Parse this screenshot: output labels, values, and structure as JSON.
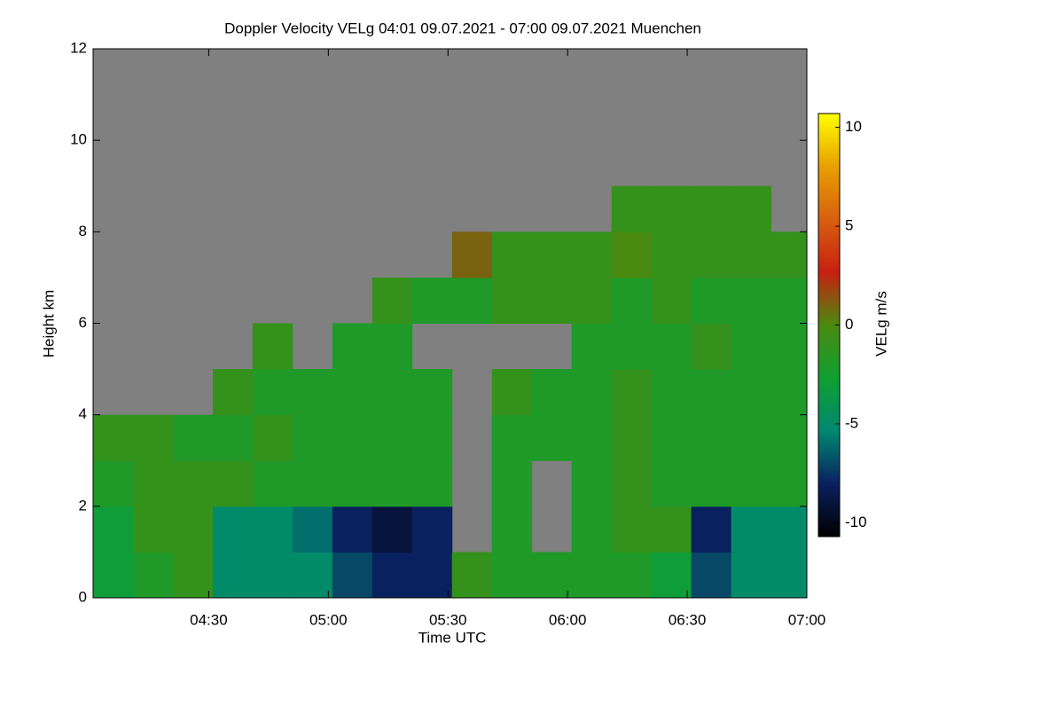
{
  "chart_data": {
    "type": "heatmap",
    "title": "Doppler Velocity VELg   04:01 09.07.2021 - 07:00 09.07.2021 Muenchen",
    "x_label": "Time UTC",
    "y_label": "Height km",
    "colorbar_label": "VELg m/s",
    "xlim": [
      "04:01",
      "07:00"
    ],
    "xticks": [
      "04:30",
      "05:00",
      "05:30",
      "06:00",
      "06:30",
      "07:00"
    ],
    "ylim": [
      0,
      12
    ],
    "yticks": [
      0,
      2,
      4,
      6,
      8,
      10,
      12
    ],
    "zlim": [
      -10.7,
      10.7
    ],
    "zticks": [
      -10,
      -5,
      0,
      5,
      10
    ],
    "colorscale": [
      "#000000",
      "#0a2060",
      "#008870",
      "#10a030",
      "#4a8a10",
      "#c82010",
      "#d86010",
      "#e8a000",
      "#ffff00"
    ],
    "nodata_color": "#808080",
    "xbins": [
      "04:01",
      "04:11",
      "04:21",
      "04:31",
      "04:41",
      "04:51",
      "05:01",
      "05:11",
      "05:21",
      "05:31",
      "05:41",
      "05:51",
      "06:01",
      "06:11",
      "06:21",
      "06:31",
      "06:41",
      "06:51",
      "07:00"
    ],
    "ybins": [
      0,
      1,
      2,
      3,
      4,
      5,
      6,
      7,
      8,
      9,
      10,
      11,
      12
    ],
    "z": [
      [
        -3,
        -2,
        -1,
        -5,
        -5,
        -5,
        -7,
        -8,
        -8,
        -1,
        -2,
        -2,
        -2,
        -2,
        -3,
        -7,
        -5,
        -5
      ],
      [
        -3,
        -1,
        -1,
        -5,
        -5,
        -6,
        -8,
        -9,
        -8,
        null,
        -2,
        null,
        -2,
        -1,
        -1,
        -8,
        -5,
        -5
      ],
      [
        -2,
        -1,
        -1,
        -1,
        -2,
        -2,
        -2,
        -2,
        -2,
        null,
        -2,
        null,
        -2,
        -1,
        -2,
        -2,
        -2,
        -2
      ],
      [
        -1,
        -1,
        -2,
        -2,
        -1,
        -2,
        -2,
        -2,
        -2,
        null,
        -2,
        -2,
        -2,
        -1,
        -2,
        -2,
        -2,
        -2
      ],
      [
        null,
        null,
        null,
        -1,
        -2,
        -2,
        -2,
        -2,
        -2,
        null,
        -1,
        -2,
        -2,
        -1,
        -2,
        -2,
        -2,
        -2
      ],
      [
        null,
        null,
        null,
        null,
        -1,
        null,
        -2,
        -2,
        null,
        null,
        null,
        null,
        -2,
        -2,
        -2,
        -1,
        -2,
        -2
      ],
      [
        null,
        null,
        null,
        null,
        null,
        null,
        null,
        -1,
        -2,
        -2,
        -1,
        -1,
        -1,
        -2,
        -1,
        -2,
        -2,
        -2
      ],
      [
        null,
        null,
        null,
        null,
        null,
        null,
        null,
        null,
        null,
        1,
        -1,
        -1,
        -1,
        0,
        -1,
        -1,
        -1,
        -1
      ],
      [
        null,
        null,
        null,
        null,
        null,
        null,
        null,
        null,
        null,
        null,
        null,
        null,
        null,
        -1,
        -1,
        -1,
        -1,
        null
      ],
      [
        null,
        null,
        null,
        null,
        null,
        null,
        null,
        null,
        null,
        null,
        null,
        null,
        null,
        null,
        null,
        null,
        null,
        null
      ],
      [
        null,
        null,
        null,
        null,
        null,
        null,
        null,
        null,
        null,
        null,
        null,
        null,
        null,
        null,
        null,
        null,
        null,
        null
      ],
      [
        null,
        null,
        null,
        null,
        null,
        null,
        null,
        null,
        null,
        null,
        null,
        null,
        null,
        null,
        null,
        null,
        null,
        null
      ]
    ]
  }
}
